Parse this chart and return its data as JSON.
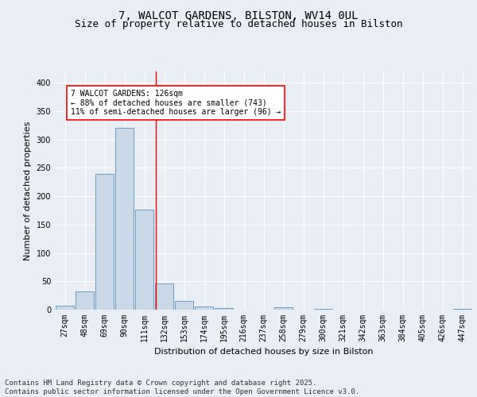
{
  "title_line1": "7, WALCOT GARDENS, BILSTON, WV14 0UL",
  "title_line2": "Size of property relative to detached houses in Bilston",
  "xlabel": "Distribution of detached houses by size in Bilston",
  "ylabel": "Number of detached properties",
  "bar_labels": [
    "27sqm",
    "48sqm",
    "69sqm",
    "90sqm",
    "111sqm",
    "132sqm",
    "153sqm",
    "174sqm",
    "195sqm",
    "216sqm",
    "237sqm",
    "258sqm",
    "279sqm",
    "300sqm",
    "321sqm",
    "342sqm",
    "363sqm",
    "384sqm",
    "405sqm",
    "426sqm",
    "447sqm"
  ],
  "bar_values": [
    7,
    32,
    240,
    320,
    177,
    46,
    16,
    6,
    3,
    0,
    0,
    4,
    0,
    2,
    0,
    0,
    0,
    0,
    0,
    0,
    2
  ],
  "bar_color": "#c9d9e8",
  "bar_edge_color": "#5b8db8",
  "reference_line_color": "red",
  "annotation_text": "7 WALCOT GARDENS: 126sqm\n← 88% of detached houses are smaller (743)\n11% of semi-detached houses are larger (96) →",
  "annotation_box_color": "white",
  "annotation_box_edge_color": "red",
  "ylim": [
    0,
    420
  ],
  "yticks": [
    0,
    50,
    100,
    150,
    200,
    250,
    300,
    350,
    400
  ],
  "background_color": "#e8eef4",
  "plot_background_color": "#e8eef4",
  "grid_color": "white",
  "title_fontsize": 10,
  "subtitle_fontsize": 9,
  "axis_label_fontsize": 8,
  "tick_fontsize": 7,
  "annotation_fontsize": 7,
  "footer_text": "Contains HM Land Registry data © Crown copyright and database right 2025.\nContains public sector information licensed under the Open Government Licence v3.0.",
  "footer_fontsize": 6.5
}
